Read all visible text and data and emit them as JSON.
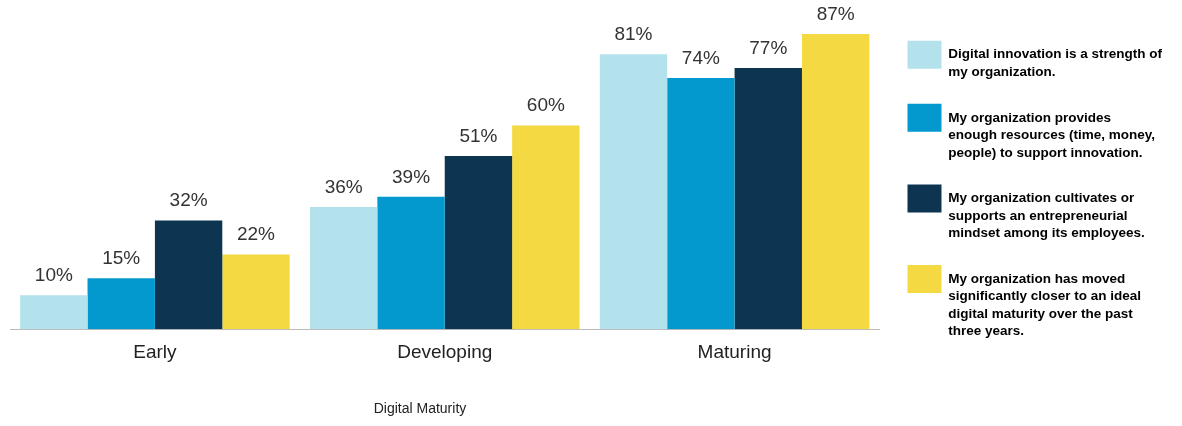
{
  "chart_data": {
    "type": "bar",
    "xlabel": "Digital Maturity",
    "categories": [
      "Early",
      "Developing",
      "Maturing"
    ],
    "series": [
      {
        "name": "Digital innovation is a strength of my organization.",
        "color": "#b3e2ed",
        "values": [
          10,
          36,
          81
        ],
        "value_labels": [
          "10%",
          "36%",
          "81%"
        ]
      },
      {
        "name": "My organization provides enough resources (time, money, people) to support innovation.",
        "color": "#0399cf",
        "values": [
          15,
          39,
          74
        ],
        "value_labels": [
          "15%",
          "39%",
          "74%"
        ]
      },
      {
        "name": "My organization cultivates or supports an entrepreneurial mindset among its employees.",
        "color": "#0d3552",
        "values": [
          32,
          51,
          77
        ],
        "value_labels": [
          "32%",
          "51%",
          "77%"
        ]
      },
      {
        "name": "My organization has moved significantly closer to an ideal digital maturity over the past three years.",
        "color": "#f4d942",
        "values": [
          22,
          60,
          87
        ],
        "value_labels": [
          "22%",
          "60%",
          "87%"
        ]
      }
    ],
    "grid": false,
    "legend": "right"
  }
}
